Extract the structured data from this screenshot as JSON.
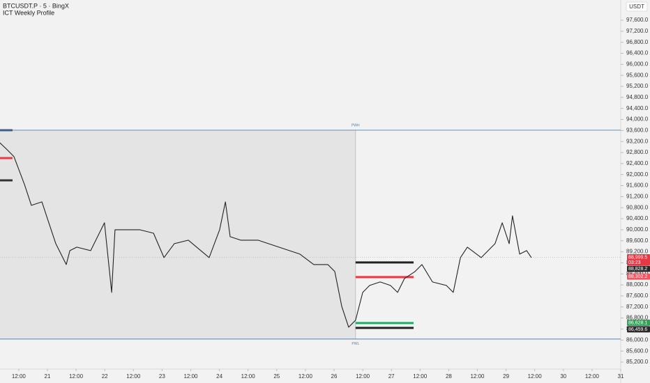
{
  "chart_data": {
    "type": "line",
    "title": "BTCUSDT.P · 5 · BingX",
    "subtitle": "ICT Weekly Profile",
    "unit": "USDT",
    "color": "#222222",
    "x": [
      4.1,
      7.1,
      10.0,
      14.4,
      17.3,
      21.7,
      24.6,
      27.5,
      31.9,
      33.4,
      36.3,
      42.1,
      47.9,
      50.9,
      52.3,
      56.7,
      62.6,
      68.4,
      72.8,
      77.1,
      83.0,
      91.7,
      96.1,
      98.5,
      100.5,
      104.9,
      112.2,
      120.9,
      129.7,
      135.5,
      141.4,
      144.3,
      147.2,
      150.1,
      153.0,
      156.0,
      158.9,
      163.3,
      167.6,
      170.6,
      173.5,
      177.9,
      180.8,
      185.2,
      191.0,
      193.9,
      196.9,
      199.8,
      205.6,
      211.4,
      214.4,
      217.3,
      218.7,
      221.7,
      224.6,
      226.6
    ],
    "values": [
      93156,
      92904,
      92651,
      91641,
      90884,
      91010,
      90252,
      89495,
      88737,
      89242,
      89369,
      89242,
      90252,
      87727,
      90000,
      90000,
      90000,
      89874,
      88990,
      89495,
      89621,
      88990,
      90000,
      91010,
      89747,
      89621,
      89621,
      89369,
      89116,
      88737,
      88737,
      88485,
      87222,
      86465,
      86718,
      87727,
      87980,
      88106,
      87980,
      87727,
      88232,
      88485,
      88737,
      88106,
      87980,
      87727,
      88990,
      89369,
      88990,
      89495,
      90252,
      89495,
      90505,
      89116,
      89242,
      88990
    ],
    "xlim": [
      4.15,
      264
    ],
    "xticks": [
      {
        "value": 12,
        "label": "12:00"
      },
      {
        "value": 24,
        "label": "21"
      },
      {
        "value": 36,
        "label": "12:00"
      },
      {
        "value": 48,
        "label": "22"
      },
      {
        "value": 60,
        "label": "12:00"
      },
      {
        "value": 72,
        "label": "23"
      },
      {
        "value": 84,
        "label": "12:00"
      },
      {
        "value": 96,
        "label": "24"
      },
      {
        "value": 108,
        "label": "12:00"
      },
      {
        "value": 120,
        "label": "25"
      },
      {
        "value": 132,
        "label": "12:00"
      },
      {
        "value": 144,
        "label": "26"
      },
      {
        "value": 156,
        "label": "12:00"
      },
      {
        "value": 168,
        "label": "27"
      },
      {
        "value": 180,
        "label": "12:00"
      },
      {
        "value": 192,
        "label": "28"
      },
      {
        "value": 204,
        "label": "12:00"
      },
      {
        "value": 216,
        "label": "29"
      },
      {
        "value": 228,
        "label": "12:00"
      },
      {
        "value": 240,
        "label": "30"
      },
      {
        "value": 252,
        "label": "12:00"
      },
      {
        "value": 264,
        "label": "31"
      }
    ],
    "ylim": [
      84947,
      98332
    ],
    "yticks": [
      {
        "value": 85200,
        "label": "85,200.0"
      },
      {
        "value": 85600,
        "label": "85,600.0"
      },
      {
        "value": 86000,
        "label": "86,000.0"
      },
      {
        "value": 86400,
        "label": "86,400.0"
      },
      {
        "value": 86800,
        "label": "86,800.0"
      },
      {
        "value": 87200,
        "label": "87,200.0"
      },
      {
        "value": 87600,
        "label": "87,600.0"
      },
      {
        "value": 88000,
        "label": "88,000.0"
      },
      {
        "value": 88400,
        "label": "88,400.0"
      },
      {
        "value": 88800,
        "label": "88,800.0"
      },
      {
        "value": 89200,
        "label": "89,200.0"
      },
      {
        "value": 89600,
        "label": "89,600.0"
      },
      {
        "value": 90000,
        "label": "90,000.0"
      },
      {
        "value": 90400,
        "label": "90,400.0"
      },
      {
        "value": 90800,
        "label": "90,800.0"
      },
      {
        "value": 91200,
        "label": "91,200.0"
      },
      {
        "value": 91600,
        "label": "91,600.0"
      },
      {
        "value": 92000,
        "label": "92,000.0"
      },
      {
        "value": 92400,
        "label": "92,400.0"
      },
      {
        "value": 92800,
        "label": "92,800.0"
      },
      {
        "value": 93200,
        "label": "93,200.0"
      },
      {
        "value": 93600,
        "label": "93,600.0"
      },
      {
        "value": 94000,
        "label": "94,000.0"
      },
      {
        "value": 94400,
        "label": "94,400.0"
      },
      {
        "value": 94800,
        "label": "94,800.0"
      },
      {
        "value": 95200,
        "label": "95,200.0"
      },
      {
        "value": 95600,
        "label": "95,600.0"
      },
      {
        "value": 96000,
        "label": "96,000.0"
      },
      {
        "value": 96400,
        "label": "96,400.0"
      },
      {
        "value": 96800,
        "label": "96,800.0"
      },
      {
        "value": 97200,
        "label": "97,200.0"
      },
      {
        "value": 97600,
        "label": "97,600.0"
      }
    ],
    "shade_until": 153,
    "levels": [
      {
        "label": "PWH",
        "value": 93610,
        "color": "#5b7fa6",
        "x": [
          4.15,
          264
        ]
      },
      {
        "label": "PWL",
        "value": 86036,
        "color": "#5b7fa6",
        "x": [
          4.15,
          264
        ]
      },
      {
        "value": 93610,
        "color": "#3d5f86",
        "x": [
          4.15,
          9.4
        ]
      },
      {
        "value": 92600,
        "color": "#f23645",
        "x": [
          4.15,
          9.4
        ]
      },
      {
        "value": 91792,
        "color": "#333333",
        "x": [
          4.15,
          9.4
        ]
      },
      {
        "value": 88813,
        "color": "#222222",
        "x": [
          153,
          177.3
        ]
      },
      {
        "value": 88283,
        "color": "#f23645",
        "x": [
          153,
          177.3
        ]
      },
      {
        "value": 86616,
        "color": "#22ab64",
        "x": [
          153,
          177.3
        ]
      },
      {
        "value": 86440,
        "color": "#222222",
        "x": [
          153,
          177.3
        ]
      }
    ],
    "price_tags": [
      {
        "value": 88999.5,
        "label": "88,999.5",
        "timer": "03:23",
        "color": "#e53946"
      },
      {
        "value": 88828.2,
        "label": "88,828.2",
        "color": "#2a2a2a"
      },
      {
        "value": 88302.2,
        "label": "88,302.2",
        "color": "#f7525f"
      },
      {
        "value": 86628.1,
        "label": "86,628.1",
        "color": "#35a05a"
      },
      {
        "value": 86459.6,
        "label": "86,459.6",
        "color": "#2a2a2a"
      }
    ]
  }
}
